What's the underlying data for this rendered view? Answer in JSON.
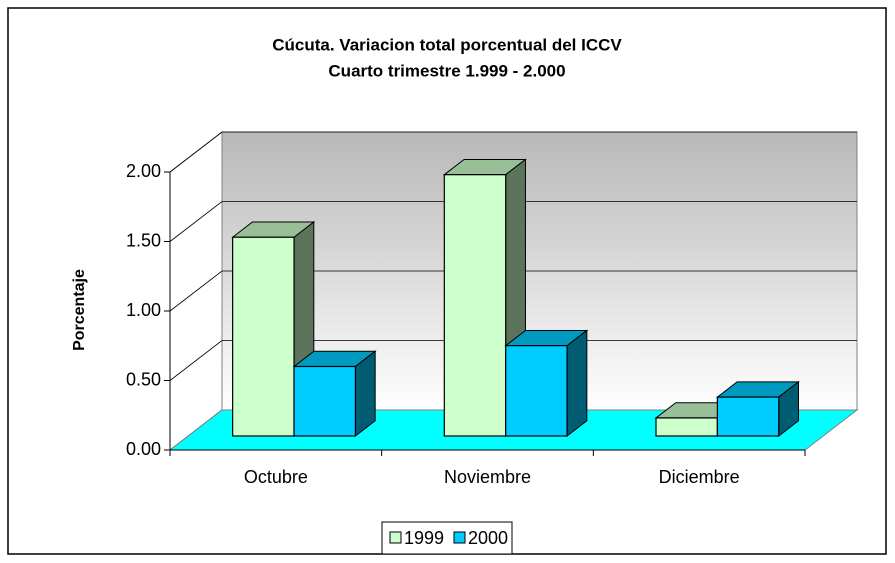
{
  "chart_data": {
    "type": "bar3d",
    "title": "Cúcuta. Variacion total porcentual del ICCV",
    "subtitle": "Cuarto trimestre 1.999 - 2.000",
    "y_label": "Porcentaje",
    "categories": [
      "Octubre",
      "Noviembre",
      "Diciembre"
    ],
    "series": [
      {
        "name": "1999",
        "color": "#ccffcc",
        "values": [
          1.43,
          1.88,
          0.13
        ]
      },
      {
        "name": "2000",
        "color": "#00ccff",
        "values": [
          0.5,
          0.65,
          0.28
        ]
      }
    ],
    "ylim": [
      0,
      2
    ],
    "yticks": [
      {
        "value": 0,
        "label": "0.00"
      },
      {
        "value": 0.5,
        "label": "0.50"
      },
      {
        "value": 1,
        "label": "1.00"
      },
      {
        "value": 1.5,
        "label": "1.50"
      },
      {
        "value": 2,
        "label": "2.00"
      }
    ],
    "grid": true,
    "legend": "bottom"
  }
}
